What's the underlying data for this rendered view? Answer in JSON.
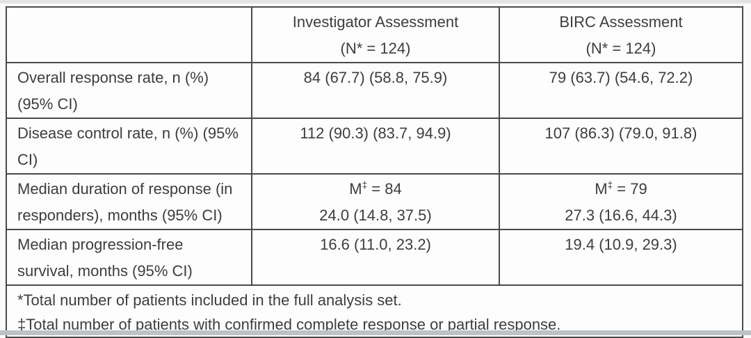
{
  "page": {
    "background": "#fbfbfb",
    "text_color": "#3d3d3d",
    "border_color": "#4a4a4a",
    "top_edge_color": "#d9d9d9",
    "bottom_edge_color": "#bfc2c4"
  },
  "table": {
    "header": {
      "col_label": "",
      "col_investigator": [
        "Investigator Assessment",
        "(N* = 124)"
      ],
      "col_birc": [
        "BIRC Assessment",
        "(N* = 124)"
      ]
    },
    "rows": [
      {
        "label": [
          "Overall response rate, n (%)",
          "(95% CI)"
        ],
        "investigator": "84 (67.7) (58.8, 75.9)",
        "birc": "79 (63.7) (54.6, 72.2)"
      },
      {
        "label": [
          "Disease control rate, n (%) (95%",
          "CI)"
        ],
        "investigator": "112 (90.3) (83.7, 94.9)",
        "birc": "107 (86.3) (79.0, 91.8)"
      },
      {
        "label": [
          "Median duration of response (in",
          "responders), months (95% CI)"
        ],
        "investigator_m": {
          "before": "M",
          "sup": "‡",
          "after": " = 84"
        },
        "investigator": "24.0 (14.8, 37.5)",
        "birc_m": {
          "before": "M",
          "sup": "‡",
          "after": " = 79"
        },
        "birc": "27.3 (16.6, 44.3)"
      },
      {
        "label": [
          "Median progression-free",
          "survival, months (95% CI)"
        ],
        "investigator": "16.6 (11.0, 23.2)",
        "birc": "19.4 (10.9, 29.3)"
      }
    ],
    "footnotes": [
      "*Total number of patients included in the full analysis set.",
      "‡Total number of patients with confirmed complete response or partial response."
    ]
  }
}
